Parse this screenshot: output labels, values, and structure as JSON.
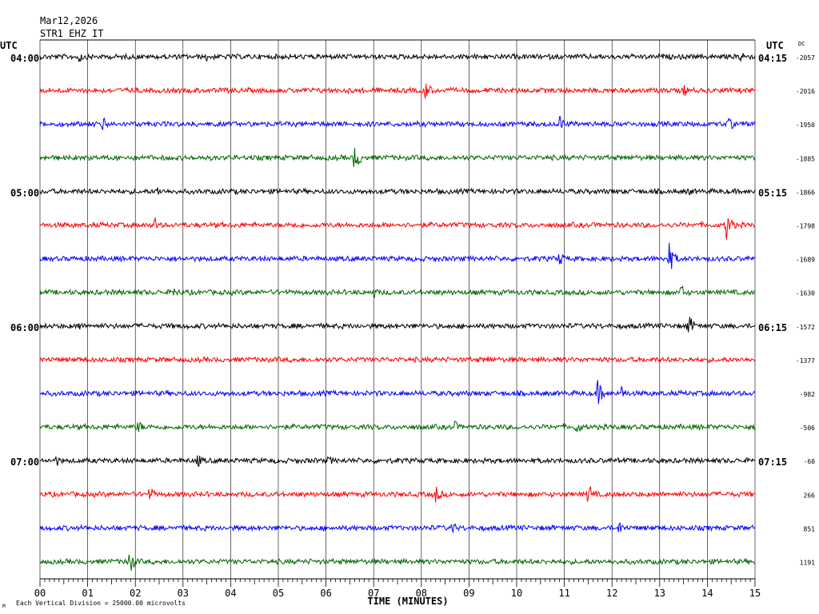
{
  "header": {
    "date": "Mar12,2026",
    "station": "STR1 EHZ IT"
  },
  "labels": {
    "utc_left": "UTC",
    "utc_right": "UTC",
    "dc": "DC",
    "footer_note": "Each Vertical Division = 25000.00 microvolts",
    "footer_mark": "M"
  },
  "chart_data": {
    "type": "line",
    "title": "",
    "xlabel": "TIME (MINUTES)",
    "ylabel": "",
    "xlim": [
      0,
      15
    ],
    "x_ticks": [
      "00",
      "01",
      "02",
      "03",
      "04",
      "05",
      "06",
      "07",
      "08",
      "09",
      "10",
      "11",
      "12",
      "13",
      "14",
      "15"
    ],
    "trace_colors": [
      "#000000",
      "#ff0000",
      "#0000ff",
      "#006600"
    ],
    "grid": "vertical lines every minute",
    "left_time_labels": [
      {
        "row": 0,
        "text": "04:00"
      },
      {
        "row": 4,
        "text": "05:00"
      },
      {
        "row": 8,
        "text": "06:00"
      },
      {
        "row": 12,
        "text": "07:00"
      }
    ],
    "right_time_labels": [
      {
        "row": 0,
        "text": "04:15"
      },
      {
        "row": 4,
        "text": "05:15"
      },
      {
        "row": 8,
        "text": "06:15"
      },
      {
        "row": 12,
        "text": "07:15"
      }
    ],
    "dc_offsets": [
      "-2057",
      "-2016",
      "-1950",
      "-1885",
      "-1866",
      "-1798",
      "-1689",
      "-1630",
      "-1572",
      "-1377",
      "-982",
      "-506",
      "-60",
      "266",
      "851",
      "1191"
    ],
    "events": [
      {
        "row": 0,
        "minute": 0.8,
        "amp": 10
      },
      {
        "row": 0,
        "minute": 3.5,
        "amp": 7
      },
      {
        "row": 0,
        "minute": 14.7,
        "amp": 11
      },
      {
        "row": 1,
        "minute": 8.05,
        "amp": 18
      },
      {
        "row": 1,
        "minute": 13.5,
        "amp": 9
      },
      {
        "row": 2,
        "minute": 1.3,
        "amp": 11
      },
      {
        "row": 2,
        "minute": 10.9,
        "amp": 12
      },
      {
        "row": 2,
        "minute": 14.45,
        "amp": 10
      },
      {
        "row": 3,
        "minute": 6.6,
        "amp": 18
      },
      {
        "row": 4,
        "minute": 2.45,
        "amp": 8
      },
      {
        "row": 4,
        "minute": 13.6,
        "amp": 7
      },
      {
        "row": 5,
        "minute": 2.4,
        "amp": 11
      },
      {
        "row": 5,
        "minute": 5.3,
        "amp": 7
      },
      {
        "row": 5,
        "minute": 14.4,
        "amp": 20
      },
      {
        "row": 6,
        "minute": 10.9,
        "amp": 10
      },
      {
        "row": 6,
        "minute": 13.2,
        "amp": 20
      },
      {
        "row": 7,
        "minute": 2.8,
        "amp": 9
      },
      {
        "row": 7,
        "minute": 7.0,
        "amp": 8
      },
      {
        "row": 7,
        "minute": 13.45,
        "amp": 11
      },
      {
        "row": 8,
        "minute": 0.8,
        "amp": 8
      },
      {
        "row": 8,
        "minute": 13.6,
        "amp": 16
      },
      {
        "row": 9,
        "minute": 4.7,
        "amp": 7
      },
      {
        "row": 9,
        "minute": 9.4,
        "amp": 6
      },
      {
        "row": 10,
        "minute": 11.7,
        "amp": 17
      },
      {
        "row": 10,
        "minute": 12.2,
        "amp": 10
      },
      {
        "row": 11,
        "minute": 2.05,
        "amp": 10
      },
      {
        "row": 11,
        "minute": 8.7,
        "amp": 8
      },
      {
        "row": 11,
        "minute": 11.25,
        "amp": 11
      },
      {
        "row": 12,
        "minute": 0.35,
        "amp": 8
      },
      {
        "row": 12,
        "minute": 3.3,
        "amp": 10
      },
      {
        "row": 12,
        "minute": 6.05,
        "amp": 7
      },
      {
        "row": 13,
        "minute": 2.3,
        "amp": 11
      },
      {
        "row": 13,
        "minute": 8.3,
        "amp": 12
      },
      {
        "row": 13,
        "minute": 11.5,
        "amp": 15
      },
      {
        "row": 14,
        "minute": 8.65,
        "amp": 9
      },
      {
        "row": 14,
        "minute": 12.15,
        "amp": 10
      },
      {
        "row": 15,
        "minute": 1.85,
        "amp": 20
      }
    ]
  }
}
